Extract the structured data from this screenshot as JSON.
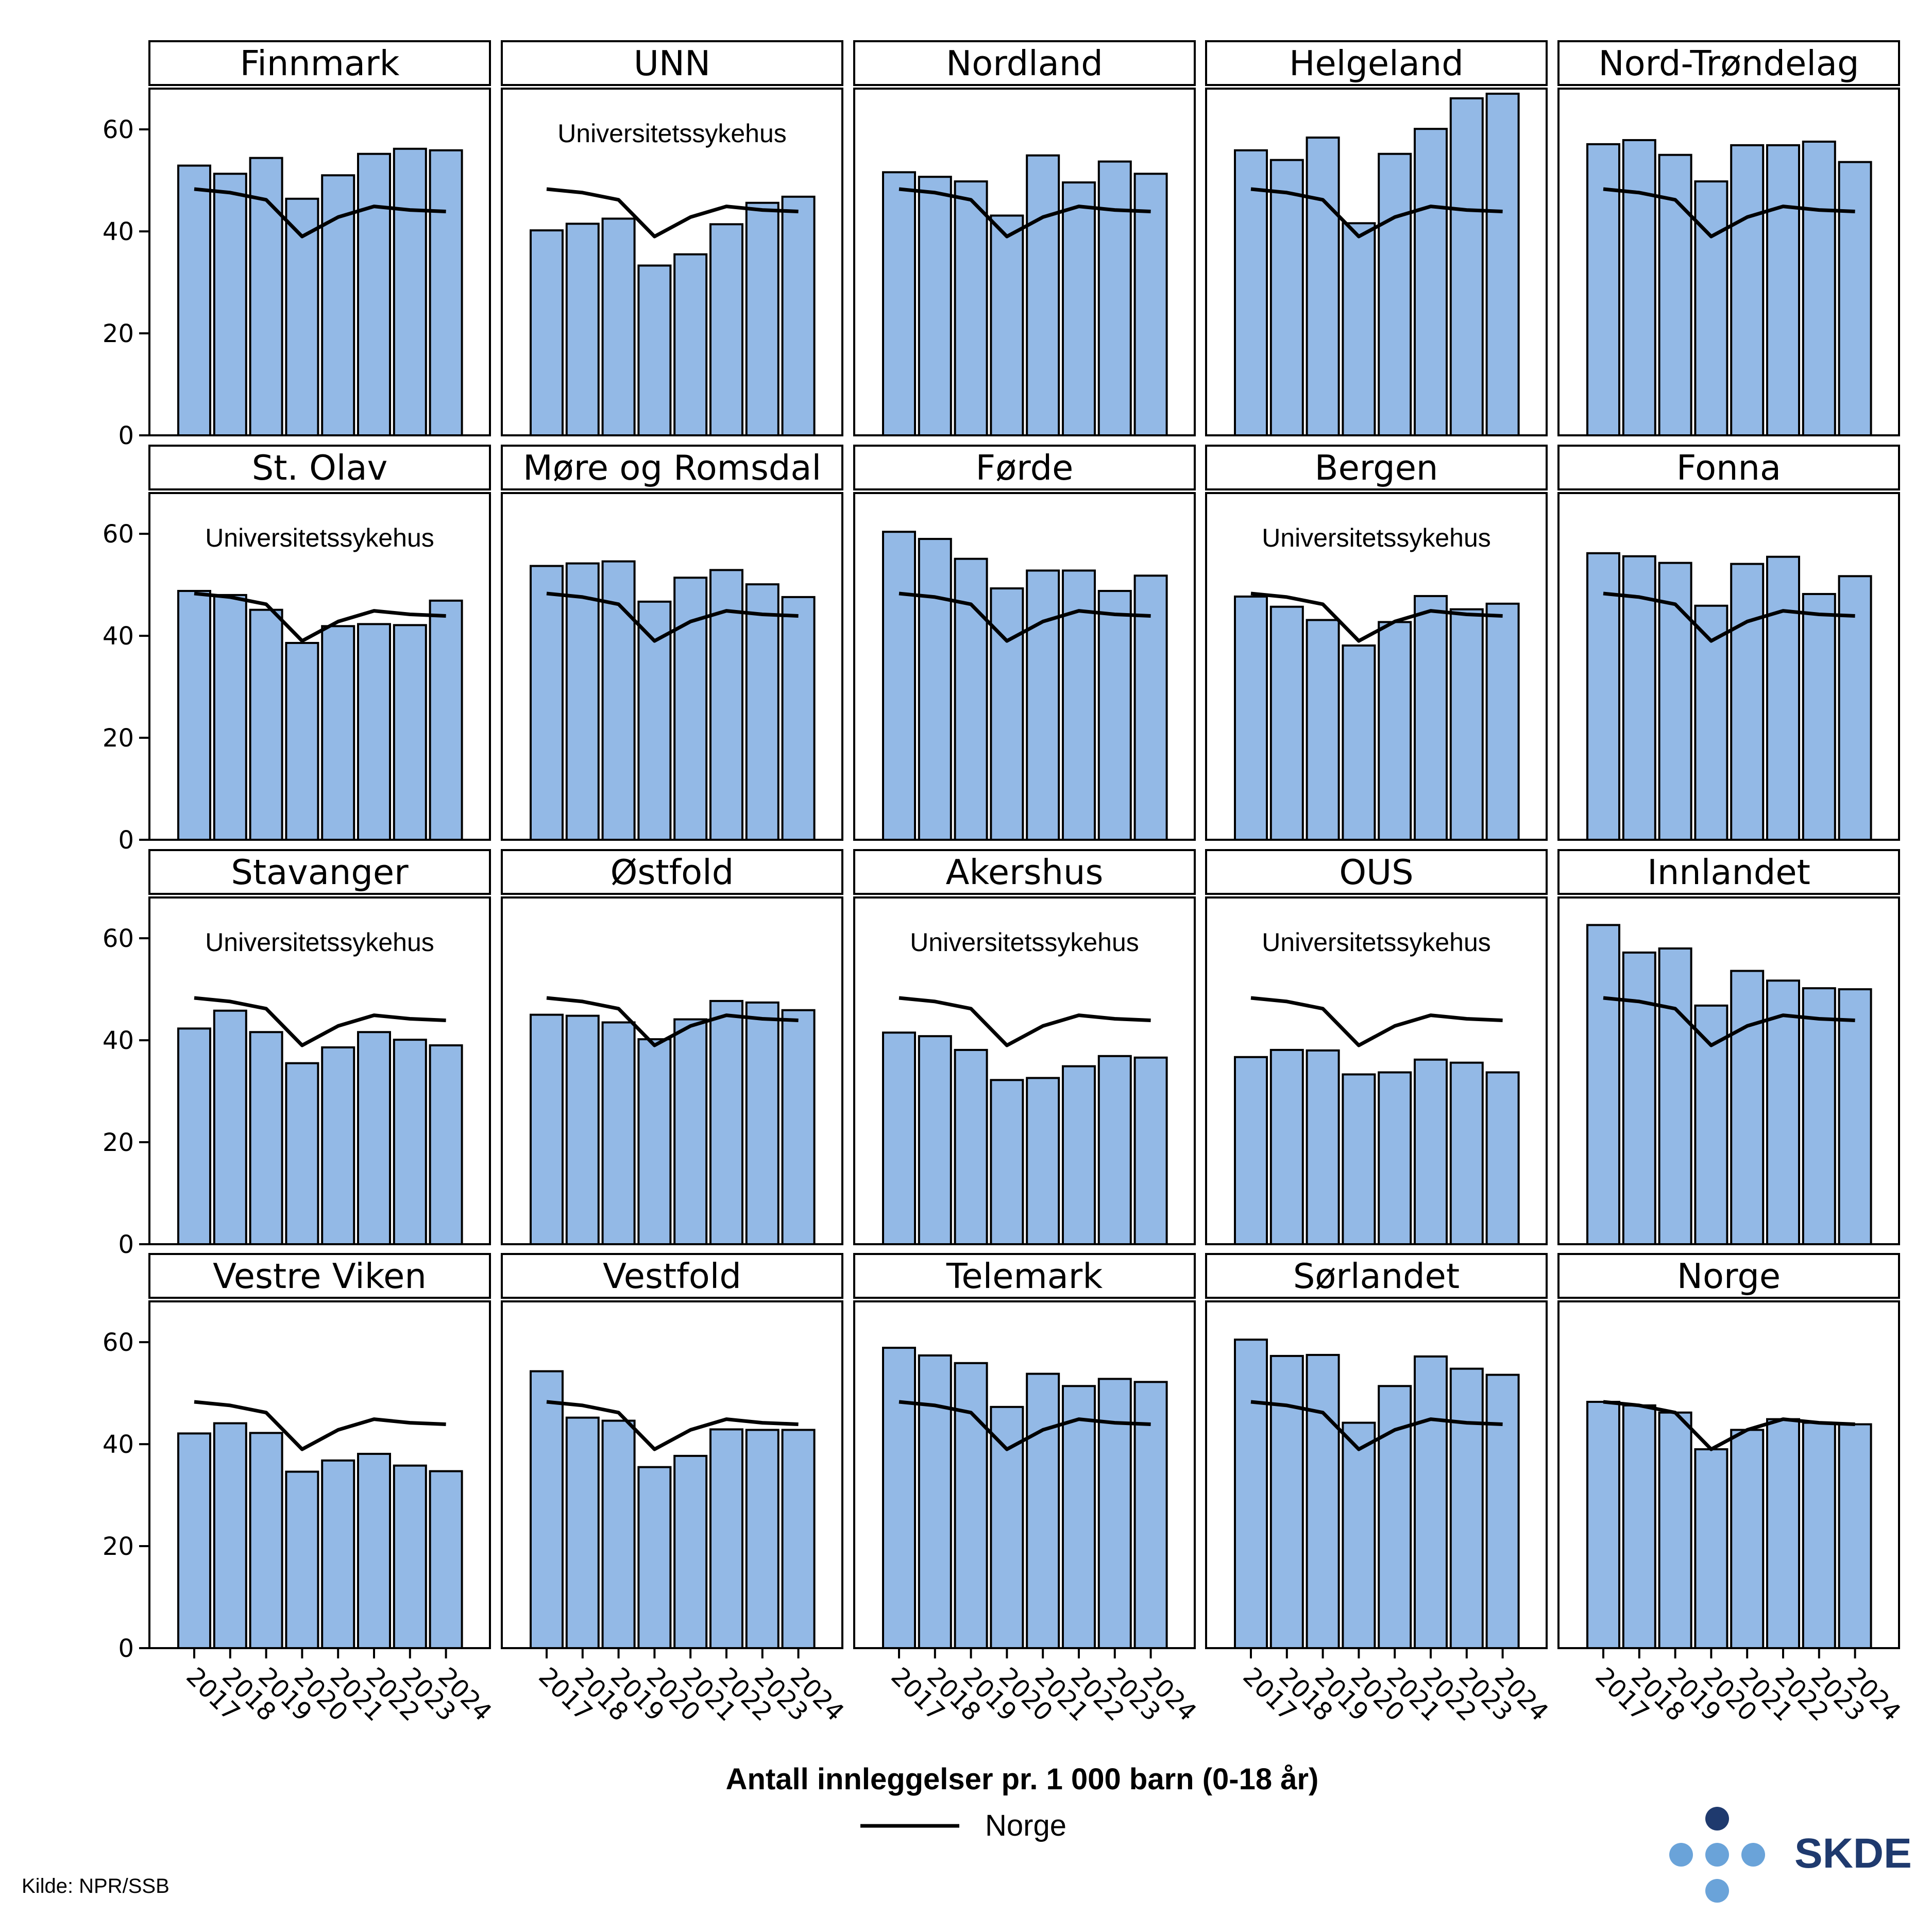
{
  "chart_data": {
    "type": "bar",
    "layout": "small-multiples 4x5",
    "categories": [
      "2017",
      "2018",
      "2019",
      "2020",
      "2021",
      "2022",
      "2023",
      "2024"
    ],
    "ylim": [
      0,
      68
    ],
    "yticks": [
      0,
      20,
      40,
      60
    ],
    "xlabel": "Antall innleggelser pr. 1 000 barn (0-18 år)",
    "bar_color": "#93b9e6",
    "line_color": "#000000",
    "reference_series": {
      "name": "Norge",
      "values": [
        48.3,
        47.6,
        46.2,
        39.0,
        42.8,
        44.9,
        44.2,
        43.9
      ]
    },
    "panels": [
      {
        "title": "Finnmark",
        "annotation": "",
        "values": [
          52.9,
          51.3,
          54.4,
          46.4,
          51.0,
          55.2,
          56.2,
          55.9
        ]
      },
      {
        "title": "UNN",
        "annotation": "Universitetssykehus",
        "values": [
          40.2,
          41.5,
          42.5,
          33.3,
          35.5,
          41.4,
          45.6,
          46.8
        ]
      },
      {
        "title": "Nordland",
        "annotation": "",
        "values": [
          51.6,
          50.7,
          49.8,
          43.1,
          54.9,
          49.6,
          53.7,
          51.3
        ]
      },
      {
        "title": "Helgeland",
        "annotation": "",
        "values": [
          55.9,
          54.0,
          58.4,
          41.6,
          55.2,
          60.1,
          66.1,
          67.0
        ]
      },
      {
        "title": "Nord-Trøndelag",
        "annotation": "",
        "values": [
          57.1,
          57.9,
          55.0,
          49.8,
          56.9,
          56.9,
          57.6,
          53.6
        ]
      },
      {
        "title": "St. Olav",
        "annotation": "Universitetssykehus",
        "values": [
          48.8,
          48.0,
          45.1,
          38.6,
          41.9,
          42.3,
          42.1,
          46.9
        ]
      },
      {
        "title": "Møre og Romsdal",
        "annotation": "",
        "values": [
          53.7,
          54.2,
          54.6,
          46.7,
          51.4,
          52.9,
          50.1,
          47.6
        ]
      },
      {
        "title": "Førde",
        "annotation": "",
        "values": [
          60.4,
          59.0,
          55.1,
          49.3,
          52.8,
          52.8,
          48.8,
          51.8
        ]
      },
      {
        "title": "Bergen",
        "annotation": "Universitetssykehus",
        "values": [
          47.7,
          45.7,
          43.1,
          38.1,
          42.7,
          47.8,
          45.2,
          46.3
        ]
      },
      {
        "title": "Fonna",
        "annotation": "",
        "values": [
          56.2,
          55.6,
          54.3,
          45.9,
          54.1,
          55.5,
          48.2,
          51.7
        ]
      },
      {
        "title": "Stavanger",
        "annotation": "Universitetssykehus",
        "values": [
          42.3,
          45.8,
          41.6,
          35.5,
          38.6,
          41.6,
          40.1,
          39.0
        ]
      },
      {
        "title": "Østfold",
        "annotation": "",
        "values": [
          45.0,
          44.8,
          43.5,
          40.2,
          44.1,
          47.7,
          47.4,
          45.9
        ]
      },
      {
        "title": "Akershus",
        "annotation": "Universitetssykehus",
        "values": [
          41.5,
          40.8,
          38.1,
          32.2,
          32.6,
          34.9,
          36.9,
          36.6
        ]
      },
      {
        "title": "OUS",
        "annotation": "Universitetssykehus",
        "values": [
          36.7,
          38.1,
          38.0,
          33.3,
          33.7,
          36.2,
          35.6,
          33.7
        ]
      },
      {
        "title": "Innlandet",
        "annotation": "",
        "values": [
          62.6,
          57.2,
          58.0,
          46.8,
          53.6,
          51.7,
          50.2,
          50.0
        ]
      },
      {
        "title": "Vestre Viken",
        "annotation": "",
        "values": [
          42.1,
          44.1,
          42.2,
          34.6,
          36.8,
          38.1,
          35.8,
          34.7
        ]
      },
      {
        "title": "Vestfold",
        "annotation": "",
        "values": [
          54.3,
          45.2,
          44.6,
          35.5,
          37.7,
          42.9,
          42.8,
          42.8
        ]
      },
      {
        "title": "Telemark",
        "annotation": "",
        "values": [
          58.9,
          57.4,
          55.9,
          47.3,
          53.8,
          51.4,
          52.8,
          52.2
        ]
      },
      {
        "title": "Sørlandet",
        "annotation": "",
        "values": [
          60.5,
          57.3,
          57.5,
          44.2,
          51.4,
          57.2,
          54.8,
          53.6
        ]
      },
      {
        "title": "Norge",
        "annotation": "",
        "values": [
          48.3,
          47.6,
          46.2,
          39.0,
          42.8,
          44.9,
          44.2,
          43.9
        ]
      }
    ]
  },
  "legend": {
    "label": "Norge"
  },
  "source": "Kilde: NPR/SSB",
  "logo": {
    "text": "SKDE",
    "dot_dark": "#1f3a6e",
    "dot_light": "#6aa3d9",
    "text_color": "#1f3a6e"
  }
}
